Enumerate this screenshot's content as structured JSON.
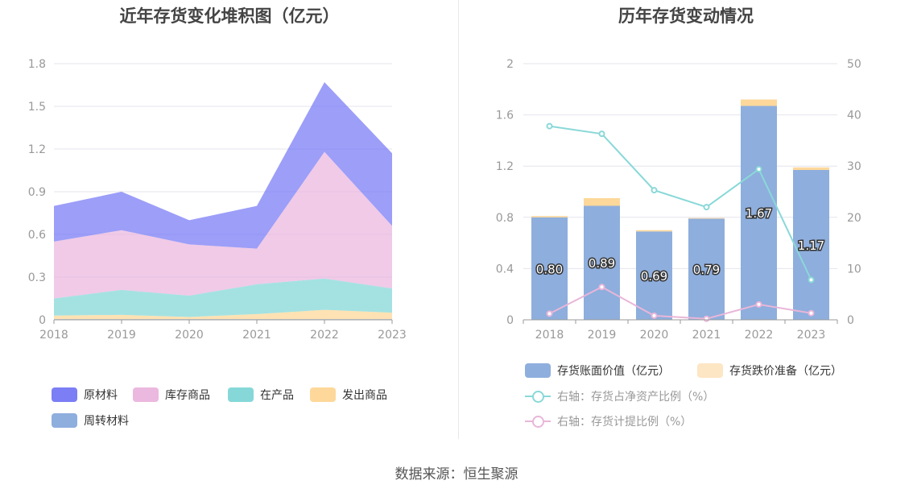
{
  "left_chart": {
    "title": "近年存货变化堆积图（亿元）",
    "legend": [
      {
        "label": "原材料",
        "color": "#7b7ef5"
      },
      {
        "label": "库存商品",
        "color": "#ebb8df"
      },
      {
        "label": "在产品",
        "color": "#86d8d8"
      },
      {
        "label": "发出商品",
        "color": "#fdd89a"
      },
      {
        "label": "周转材料",
        "color": "#8eaedd"
      }
    ]
  },
  "right_chart": {
    "title": "历年存货变动情况",
    "legend": [
      {
        "label": "存货账面价值（亿元）",
        "color": "#8eaedd",
        "kind": "bar"
      },
      {
        "label": "存货跌价准备（亿元）",
        "color": "#fde6c4",
        "kind": "bar"
      },
      {
        "label": "右轴：存货占净资产比例（%）",
        "color": "#8ad8d8",
        "kind": "line"
      },
      {
        "label": "右轴：存货计提比例（%）",
        "color": "#e9b6d9",
        "kind": "line"
      }
    ]
  },
  "footer": "数据来源：恒生聚源",
  "chart_data": [
    {
      "type": "area",
      "stacked": true,
      "title": "近年存货变化堆积图（亿元）",
      "categories": [
        "2018",
        "2019",
        "2020",
        "2021",
        "2022",
        "2023"
      ],
      "ylim": [
        0,
        1.8
      ],
      "yticks": [
        "0",
        "0.3",
        "0.6",
        "0.9",
        "1.2",
        "1.5",
        "1.8"
      ],
      "grid": true,
      "legend_position": "bottom",
      "series": [
        {
          "name": "周转材料",
          "color": "#8eaedd",
          "values": [
            0.005,
            0.005,
            0.005,
            0.005,
            0.005,
            0.005
          ]
        },
        {
          "name": "发出商品",
          "color": "#fdd89a",
          "values": [
            0.025,
            0.03,
            0.015,
            0.035,
            0.065,
            0.045
          ]
        },
        {
          "name": "在产品",
          "color": "#86d8d8",
          "values": [
            0.12,
            0.175,
            0.15,
            0.21,
            0.22,
            0.17
          ]
        },
        {
          "name": "库存商品",
          "color": "#ebb8df",
          "values": [
            0.4,
            0.42,
            0.36,
            0.25,
            0.89,
            0.44
          ]
        },
        {
          "name": "原材料",
          "color": "#7b7ef5",
          "values": [
            0.25,
            0.27,
            0.17,
            0.3,
            0.49,
            0.51
          ]
        }
      ]
    },
    {
      "type": "bar",
      "stacked": true,
      "title": "历年存货变动情况",
      "categories": [
        "2018",
        "2019",
        "2020",
        "2021",
        "2022",
        "2023"
      ],
      "ylim": [
        0,
        2
      ],
      "yticks": [
        "0",
        "0.4",
        "0.8",
        "1.2",
        "1.6",
        "2"
      ],
      "y2lim": [
        0,
        50
      ],
      "y2ticks": [
        "0",
        "10",
        "20",
        "30",
        "40",
        "50"
      ],
      "grid": true,
      "legend_position": "bottom",
      "series": [
        {
          "name": "存货账面价值（亿元）",
          "color": "#8eaedd",
          "values": [
            0.8,
            0.89,
            0.69,
            0.79,
            1.67,
            1.17
          ],
          "labels": [
            "0.80",
            "0.89",
            "0.69",
            "0.79",
            "1.67",
            "1.17"
          ]
        },
        {
          "name": "存货跌价准备（亿元）",
          "color": "#fdd89a",
          "values": [
            0.01,
            0.06,
            0.01,
            0.005,
            0.05,
            0.02
          ]
        }
      ],
      "line_series": [
        {
          "name": "右轴：存货占净资产比例（%）",
          "color": "#8ad8d8",
          "axis": "right",
          "values": [
            37.8,
            36.3,
            25.3,
            22.0,
            29.4,
            7.8
          ]
        },
        {
          "name": "右轴：存货计提比例（%）",
          "color": "#e9b6d9",
          "axis": "right",
          "values": [
            1.2,
            6.4,
            0.8,
            0.2,
            3.0,
            1.3
          ]
        }
      ]
    }
  ]
}
